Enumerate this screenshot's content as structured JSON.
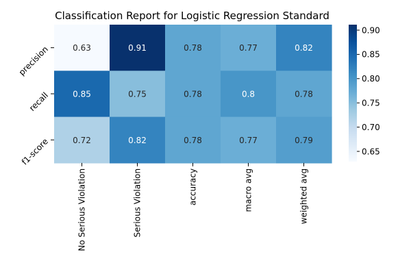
{
  "chart_data": {
    "type": "heatmap",
    "title": "Classification Report for Logistic Regression Standard",
    "rows": [
      "precision",
      "recall",
      "f1-score"
    ],
    "columns": [
      "No Serious Violation",
      "Serious Violation",
      "accuracy",
      "macro avg",
      "weighted avg"
    ],
    "values": [
      [
        0.63,
        0.91,
        0.78,
        0.77,
        0.82
      ],
      [
        0.85,
        0.75,
        0.78,
        0.8,
        0.78
      ],
      [
        0.72,
        0.82,
        0.78,
        0.77,
        0.79
      ]
    ],
    "labels": [
      [
        "0.63",
        "0.91",
        "0.78",
        "0.77",
        "0.82"
      ],
      [
        "0.85",
        "0.75",
        "0.78",
        "0.8",
        "0.78"
      ],
      [
        "0.72",
        "0.82",
        "0.78",
        "0.77",
        "0.79"
      ]
    ],
    "colormap": "Blues",
    "colorbar": {
      "range": [
        0.6288,
        0.9113
      ],
      "ticks": [
        "0.65",
        "0.70",
        "0.75",
        "0.80",
        "0.85",
        "0.90"
      ],
      "tick_values": [
        0.65,
        0.7,
        0.75,
        0.8,
        0.85,
        0.9
      ]
    },
    "grid": false,
    "legend": "colorbar-right"
  }
}
